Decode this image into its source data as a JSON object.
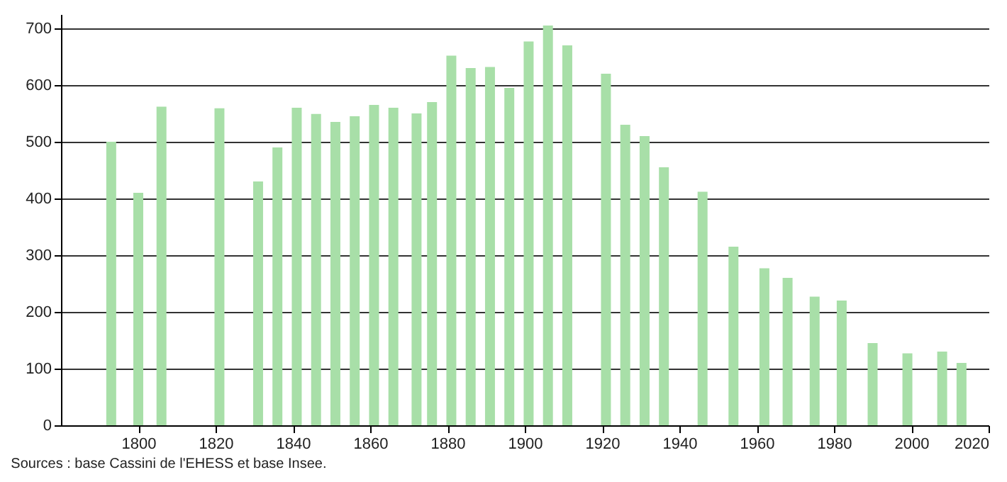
{
  "chart_data": {
    "type": "bar",
    "x": [
      1793,
      1800,
      1806,
      1821,
      1831,
      1836,
      1841,
      1846,
      1851,
      1856,
      1861,
      1866,
      1872,
      1876,
      1881,
      1886,
      1891,
      1896,
      1901,
      1906,
      1911,
      1921,
      1926,
      1931,
      1936,
      1946,
      1954,
      1962,
      1968,
      1975,
      1982,
      1990,
      1999,
      2008,
      2013
    ],
    "values": [
      500,
      410,
      562,
      559,
      430,
      490,
      560,
      549,
      535,
      545,
      565,
      560,
      550,
      570,
      652,
      630,
      632,
      595,
      677,
      705,
      670,
      620,
      530,
      510,
      455,
      412,
      315,
      277,
      260,
      227,
      220,
      145,
      127,
      130,
      110
    ],
    "color": "#a8dfa8",
    "xlim": [
      1780,
      2020
    ],
    "xticks": [
      1800,
      1820,
      1840,
      1860,
      1880,
      1900,
      1920,
      1940,
      1960,
      1980,
      2000,
      2020
    ],
    "ylim": [
      0,
      725
    ],
    "yticks": [
      0,
      100,
      200,
      300,
      400,
      500,
      600,
      700
    ],
    "grid": "y",
    "annotations": [
      "Sources : base Cassini de l'EHESS et base Insee."
    ]
  }
}
